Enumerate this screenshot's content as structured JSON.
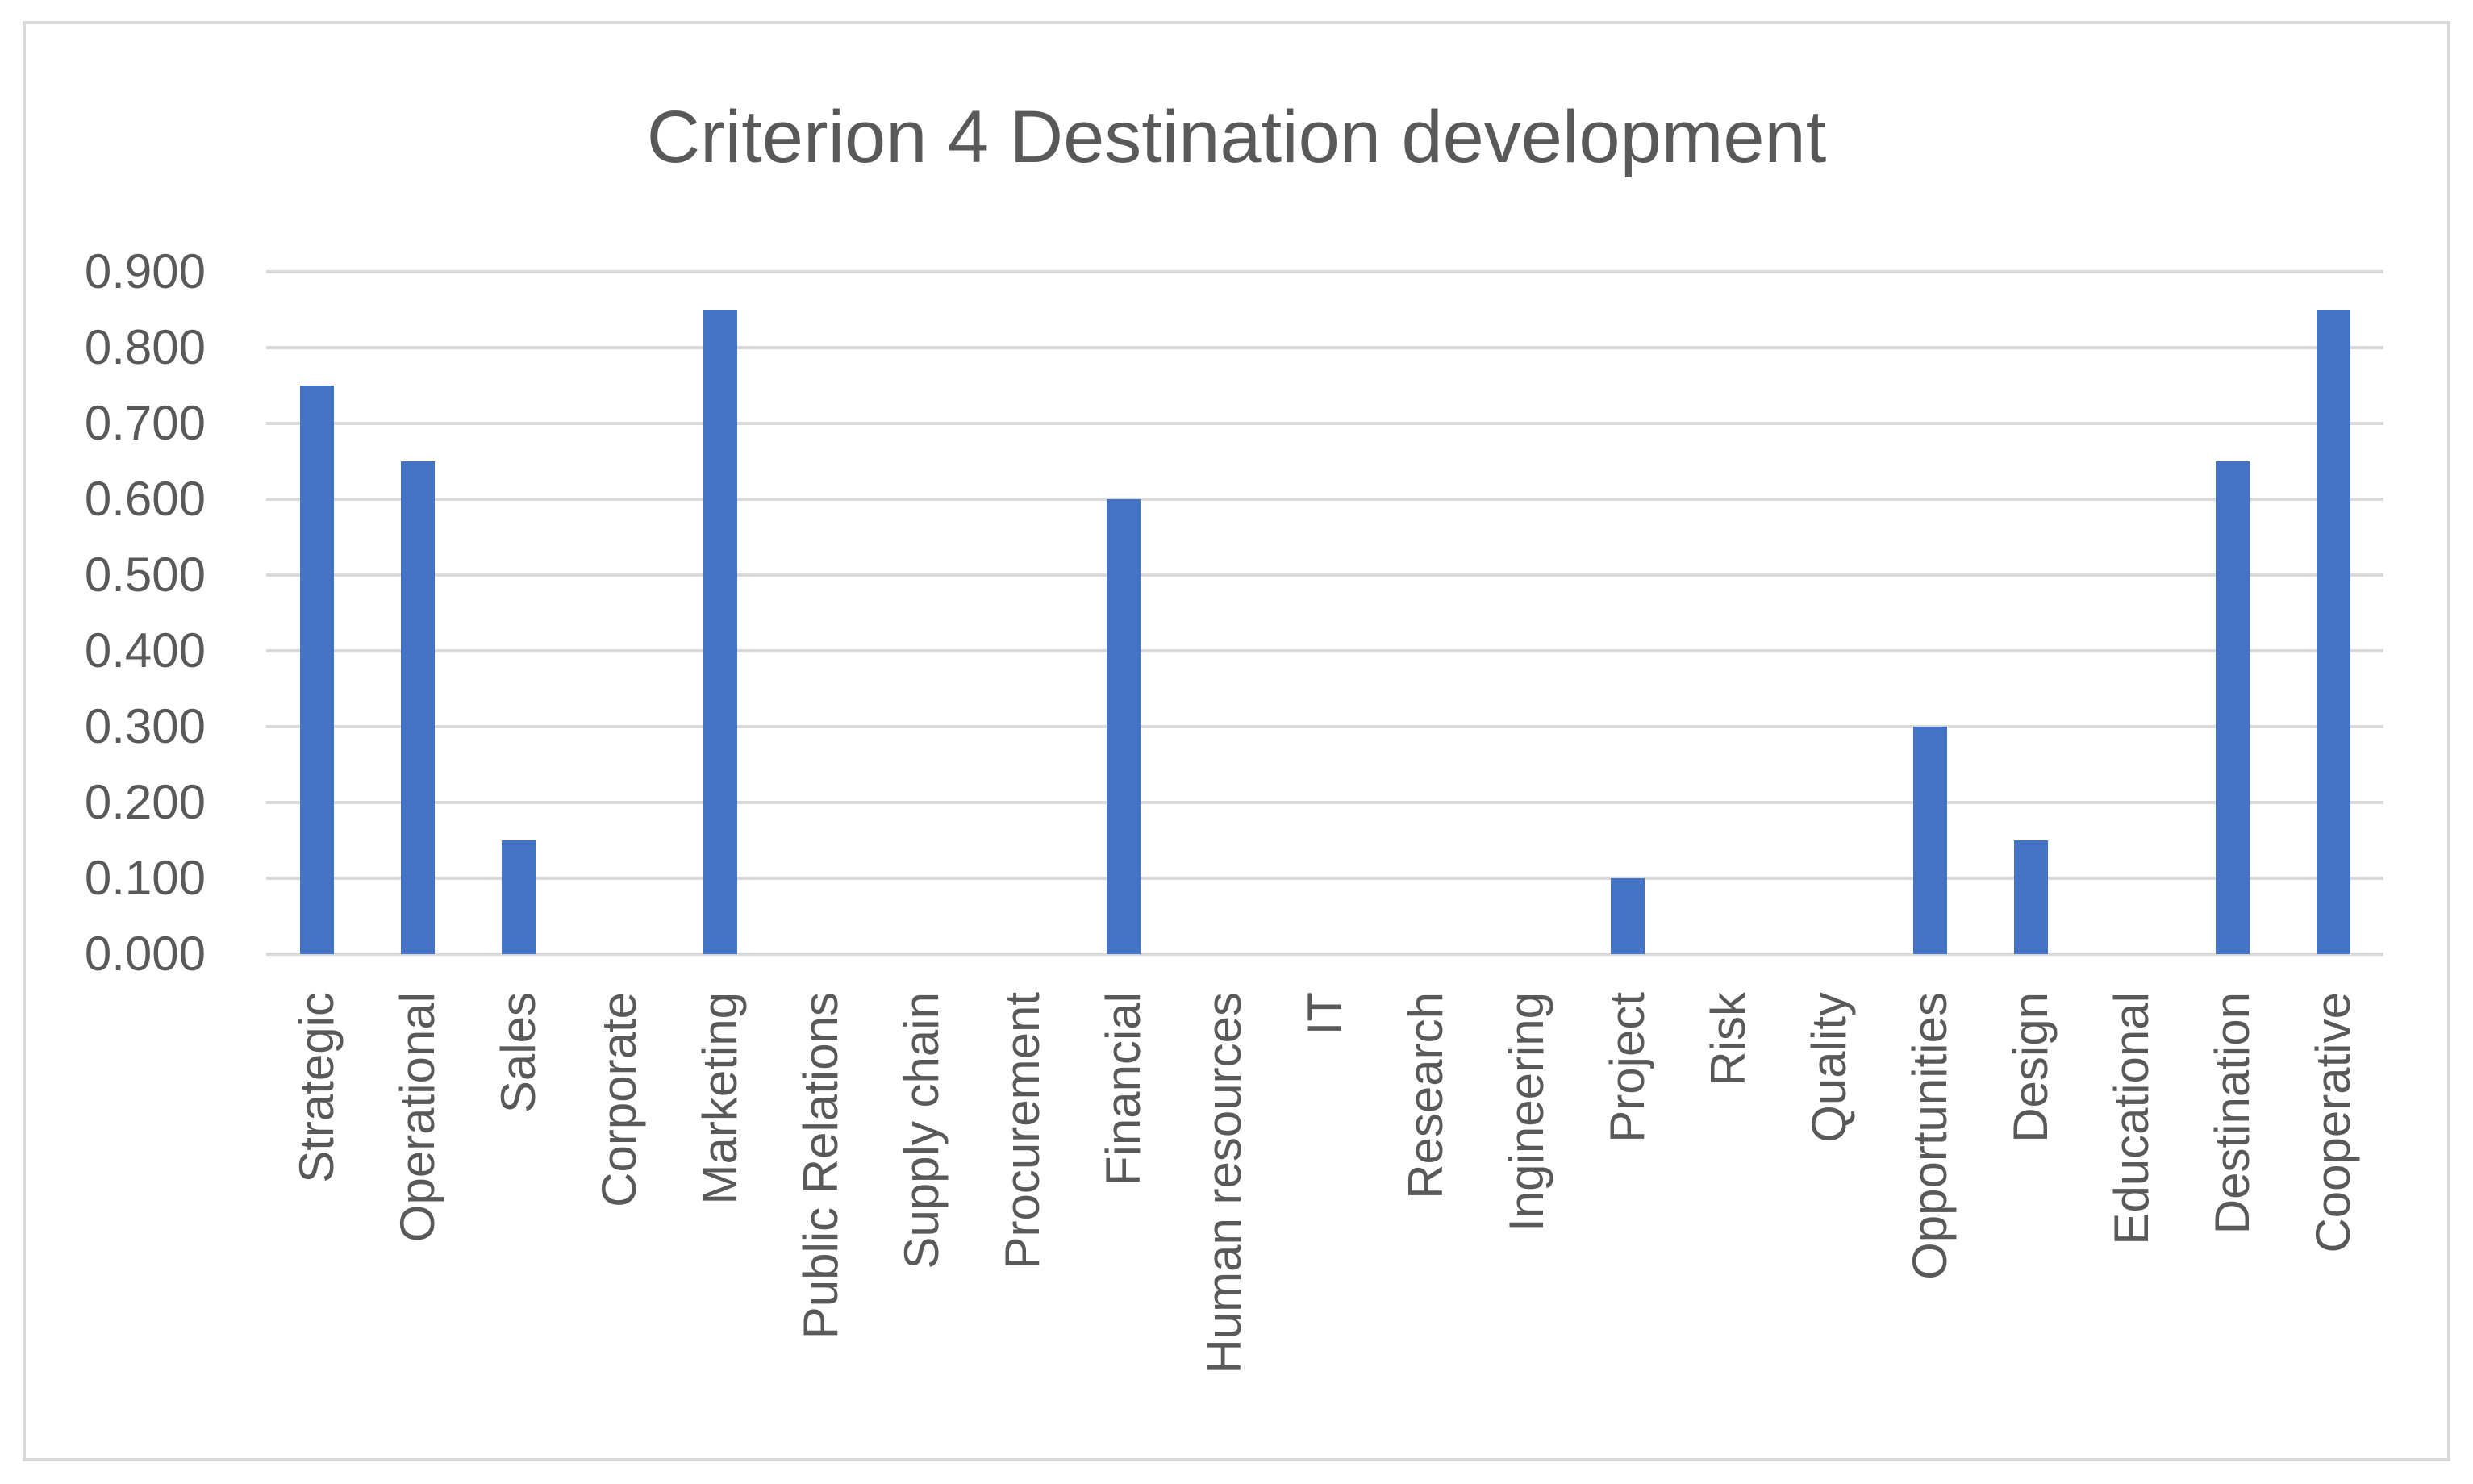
{
  "chart_data": {
    "type": "bar",
    "title": "Criterion 4 Destination development",
    "categories": [
      "Strategic",
      "Operational",
      "Sales",
      "Corporate",
      "Marketing",
      "Public Relations",
      "Supply chain",
      "Procurement",
      "Financial",
      "Human resources",
      "IT",
      "Research",
      "Ingineering",
      "Project",
      "Risk",
      "Quality",
      "Opportunities",
      "Design",
      "Educational",
      "Destination",
      "Cooperative"
    ],
    "values": [
      0.75,
      0.65,
      0.15,
      0.0,
      0.85,
      0.0,
      0.0,
      0.0,
      0.6,
      0.0,
      0.0,
      0.0,
      0.0,
      0.1,
      0.0,
      0.0,
      0.3,
      0.15,
      0.0,
      0.65,
      0.85
    ],
    "xlabel": "",
    "ylabel": "",
    "ylim": [
      0,
      0.9
    ],
    "ytick_values": [
      0.9,
      0.8,
      0.7,
      0.6,
      0.5,
      0.4,
      0.3,
      0.2,
      0.1,
      0.0
    ],
    "ytick_labels": [
      "0.900",
      "0.800",
      "0.700",
      "0.600",
      "0.500",
      "0.400",
      "0.300",
      "0.200",
      "0.100",
      "0.000"
    ],
    "grid": true,
    "legend": false,
    "colors": {
      "bar": "#4472C4",
      "gridline": "#D9D9D9",
      "frame_border": "#D9D9D9",
      "text": "#595959",
      "background": "#FFFFFF"
    }
  }
}
